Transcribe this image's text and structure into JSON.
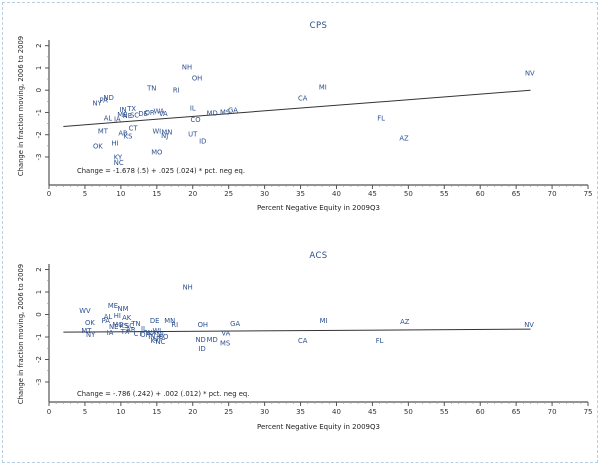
{
  "page": {
    "background": "#ffffff",
    "frame_border_color": "#b7cfe3"
  },
  "colors": {
    "state_label": "#2b4f8f",
    "title": "#2b4f8f",
    "axis": "#555555",
    "minor_tick": "#999999",
    "fit_line": "#333333",
    "text": "#222222"
  },
  "chart_data": [
    {
      "type": "scatter",
      "title": "CPS",
      "xlabel": "Percent Negative Equity in 2009Q3",
      "ylabel": "Change in fraction moving, 2006 to 2009",
      "annotation": "Change = -1.678 (.5) + .025 (.024) * pct. neg eq.",
      "xlim": [
        0,
        75
      ],
      "ylim": [
        -4.3,
        2.1
      ],
      "grid": false,
      "marker": "state-abbreviation-text",
      "xticks": [
        0,
        5,
        10,
        15,
        20,
        25,
        30,
        35,
        40,
        45,
        50,
        55,
        60,
        65,
        70,
        75
      ],
      "yticks": [
        2,
        1,
        0,
        -1,
        -2,
        -3
      ],
      "fit_line": {
        "intercept": -1.678,
        "slope": 0.025,
        "x_start": 2,
        "x_end": 67
      },
      "points": [
        [
          "NH",
          19.2,
          1.03
        ],
        [
          "OH",
          20.6,
          0.54
        ],
        [
          "NV",
          66.9,
          0.76
        ],
        [
          "MI",
          38.1,
          0.13
        ],
        [
          "TN",
          14.3,
          0.09
        ],
        [
          "RI",
          17.7,
          0.0
        ],
        [
          "CA",
          35.3,
          -0.36
        ],
        [
          "NY",
          6.7,
          -0.58
        ],
        [
          "PA",
          7.6,
          -0.45
        ],
        [
          "ND",
          8.3,
          -0.33
        ],
        [
          "IN",
          10.3,
          -0.88
        ],
        [
          "TX",
          11.5,
          -0.83
        ],
        [
          "ME",
          10.2,
          -1.1
        ],
        [
          "NE",
          10.9,
          -1.15
        ],
        [
          "SC",
          11.9,
          -1.12
        ],
        [
          "DE",
          13.1,
          -1.05
        ],
        [
          "OR",
          14.0,
          -1.0
        ],
        [
          "WA",
          15.3,
          -0.93
        ],
        [
          "VA",
          15.9,
          -1.06
        ],
        [
          "IL",
          20.0,
          -0.81
        ],
        [
          "CO",
          20.4,
          -1.33
        ],
        [
          "MD",
          22.7,
          -1.03
        ],
        [
          "MS",
          24.5,
          -0.99
        ],
        [
          "GA",
          25.6,
          -0.9
        ],
        [
          "AL",
          8.2,
          -1.26
        ],
        [
          "IA",
          9.5,
          -1.29
        ],
        [
          "MT",
          7.5,
          -1.83
        ],
        [
          "CT",
          11.7,
          -1.7
        ],
        [
          "AR",
          10.3,
          -1.93
        ],
        [
          "KS",
          11.0,
          -2.06
        ],
        [
          "WI",
          15.0,
          -1.84
        ],
        [
          "MN",
          16.4,
          -1.88
        ],
        [
          "NJ",
          16.1,
          -2.03
        ],
        [
          "UT",
          20.0,
          -1.97
        ],
        [
          "ID",
          21.4,
          -2.28
        ],
        [
          "FL",
          46.2,
          -1.26
        ],
        [
          "AZ",
          49.4,
          -2.15
        ],
        [
          "OK",
          6.8,
          -2.51
        ],
        [
          "HI",
          9.2,
          -2.38
        ],
        [
          "MO",
          15.0,
          -2.78
        ],
        [
          "KY",
          9.6,
          -3.0
        ],
        [
          "NC",
          9.7,
          -3.26
        ]
      ]
    },
    {
      "type": "scatter",
      "title": "ACS",
      "xlabel": "Percent Negative Equity in 2009Q3",
      "ylabel": "Change in fraction moving, 2006 to 2009",
      "annotation": "Change = -.786 (.242) + .002 (.012) * pct. neg eq.",
      "xlim": [
        0,
        75
      ],
      "ylim": [
        -3.9,
        2.1
      ],
      "grid": false,
      "marker": "state-abbreviation-text",
      "xticks": [
        0,
        5,
        10,
        15,
        20,
        25,
        30,
        35,
        40,
        45,
        50,
        55,
        60,
        65,
        70,
        75
      ],
      "yticks": [
        2,
        1,
        0,
        -1,
        -2,
        -3
      ],
      "fit_line": {
        "intercept": -0.786,
        "slope": 0.002,
        "x_start": 2,
        "x_end": 67
      },
      "points": [
        [
          "NH",
          19.3,
          1.21
        ],
        [
          "WV",
          5.0,
          0.18
        ],
        [
          "ME",
          8.9,
          0.4
        ],
        [
          "NM",
          10.3,
          0.27
        ],
        [
          "AL",
          8.2,
          -0.09
        ],
        [
          "HI",
          9.5,
          -0.04
        ],
        [
          "AK",
          10.8,
          -0.13
        ],
        [
          "PA",
          7.9,
          -0.27
        ],
        [
          "OK",
          5.7,
          -0.36
        ],
        [
          "NE",
          9.0,
          -0.53
        ],
        [
          "MO",
          9.6,
          -0.45
        ],
        [
          "KS",
          10.4,
          -0.49
        ],
        [
          "SC",
          11.2,
          -0.49
        ],
        [
          "TN",
          12.1,
          -0.4
        ],
        [
          "DE",
          14.7,
          -0.27
        ],
        [
          "MN",
          16.8,
          -0.27
        ],
        [
          "RI",
          17.5,
          -0.45
        ],
        [
          "MT",
          5.2,
          -0.71
        ],
        [
          "NY",
          5.8,
          -0.89
        ],
        [
          "IA",
          8.5,
          -0.81
        ],
        [
          "TX",
          10.6,
          -0.76
        ],
        [
          "AR",
          11.4,
          -0.67
        ],
        [
          "IL",
          13.2,
          -0.62
        ],
        [
          "CT",
          12.4,
          -0.85
        ],
        [
          "OR",
          13.4,
          -0.89
        ],
        [
          "WA",
          14.2,
          -0.8
        ],
        [
          "WI",
          15.0,
          -0.71
        ],
        [
          "IN",
          14.3,
          -0.98
        ],
        [
          "NJ",
          15.5,
          -0.89
        ],
        [
          "UT",
          15.1,
          -1.08
        ],
        [
          "CO",
          15.9,
          -0.98
        ],
        [
          "KY",
          14.7,
          -1.16
        ],
        [
          "NC",
          15.5,
          -1.21
        ],
        [
          "OH",
          21.4,
          -0.45
        ],
        [
          "GA",
          25.9,
          -0.4
        ],
        [
          "VA",
          24.6,
          -0.83
        ],
        [
          "ND",
          21.1,
          -1.12
        ],
        [
          "MD",
          22.7,
          -1.12
        ],
        [
          "MS",
          24.5,
          -1.26
        ],
        [
          "ID",
          21.3,
          -1.52
        ],
        [
          "MI",
          38.2,
          -0.27
        ],
        [
          "CA",
          35.3,
          -1.17
        ],
        [
          "FL",
          46.0,
          -1.17
        ],
        [
          "AZ",
          49.5,
          -0.31
        ],
        [
          "NV",
          66.8,
          -0.45
        ]
      ]
    }
  ]
}
